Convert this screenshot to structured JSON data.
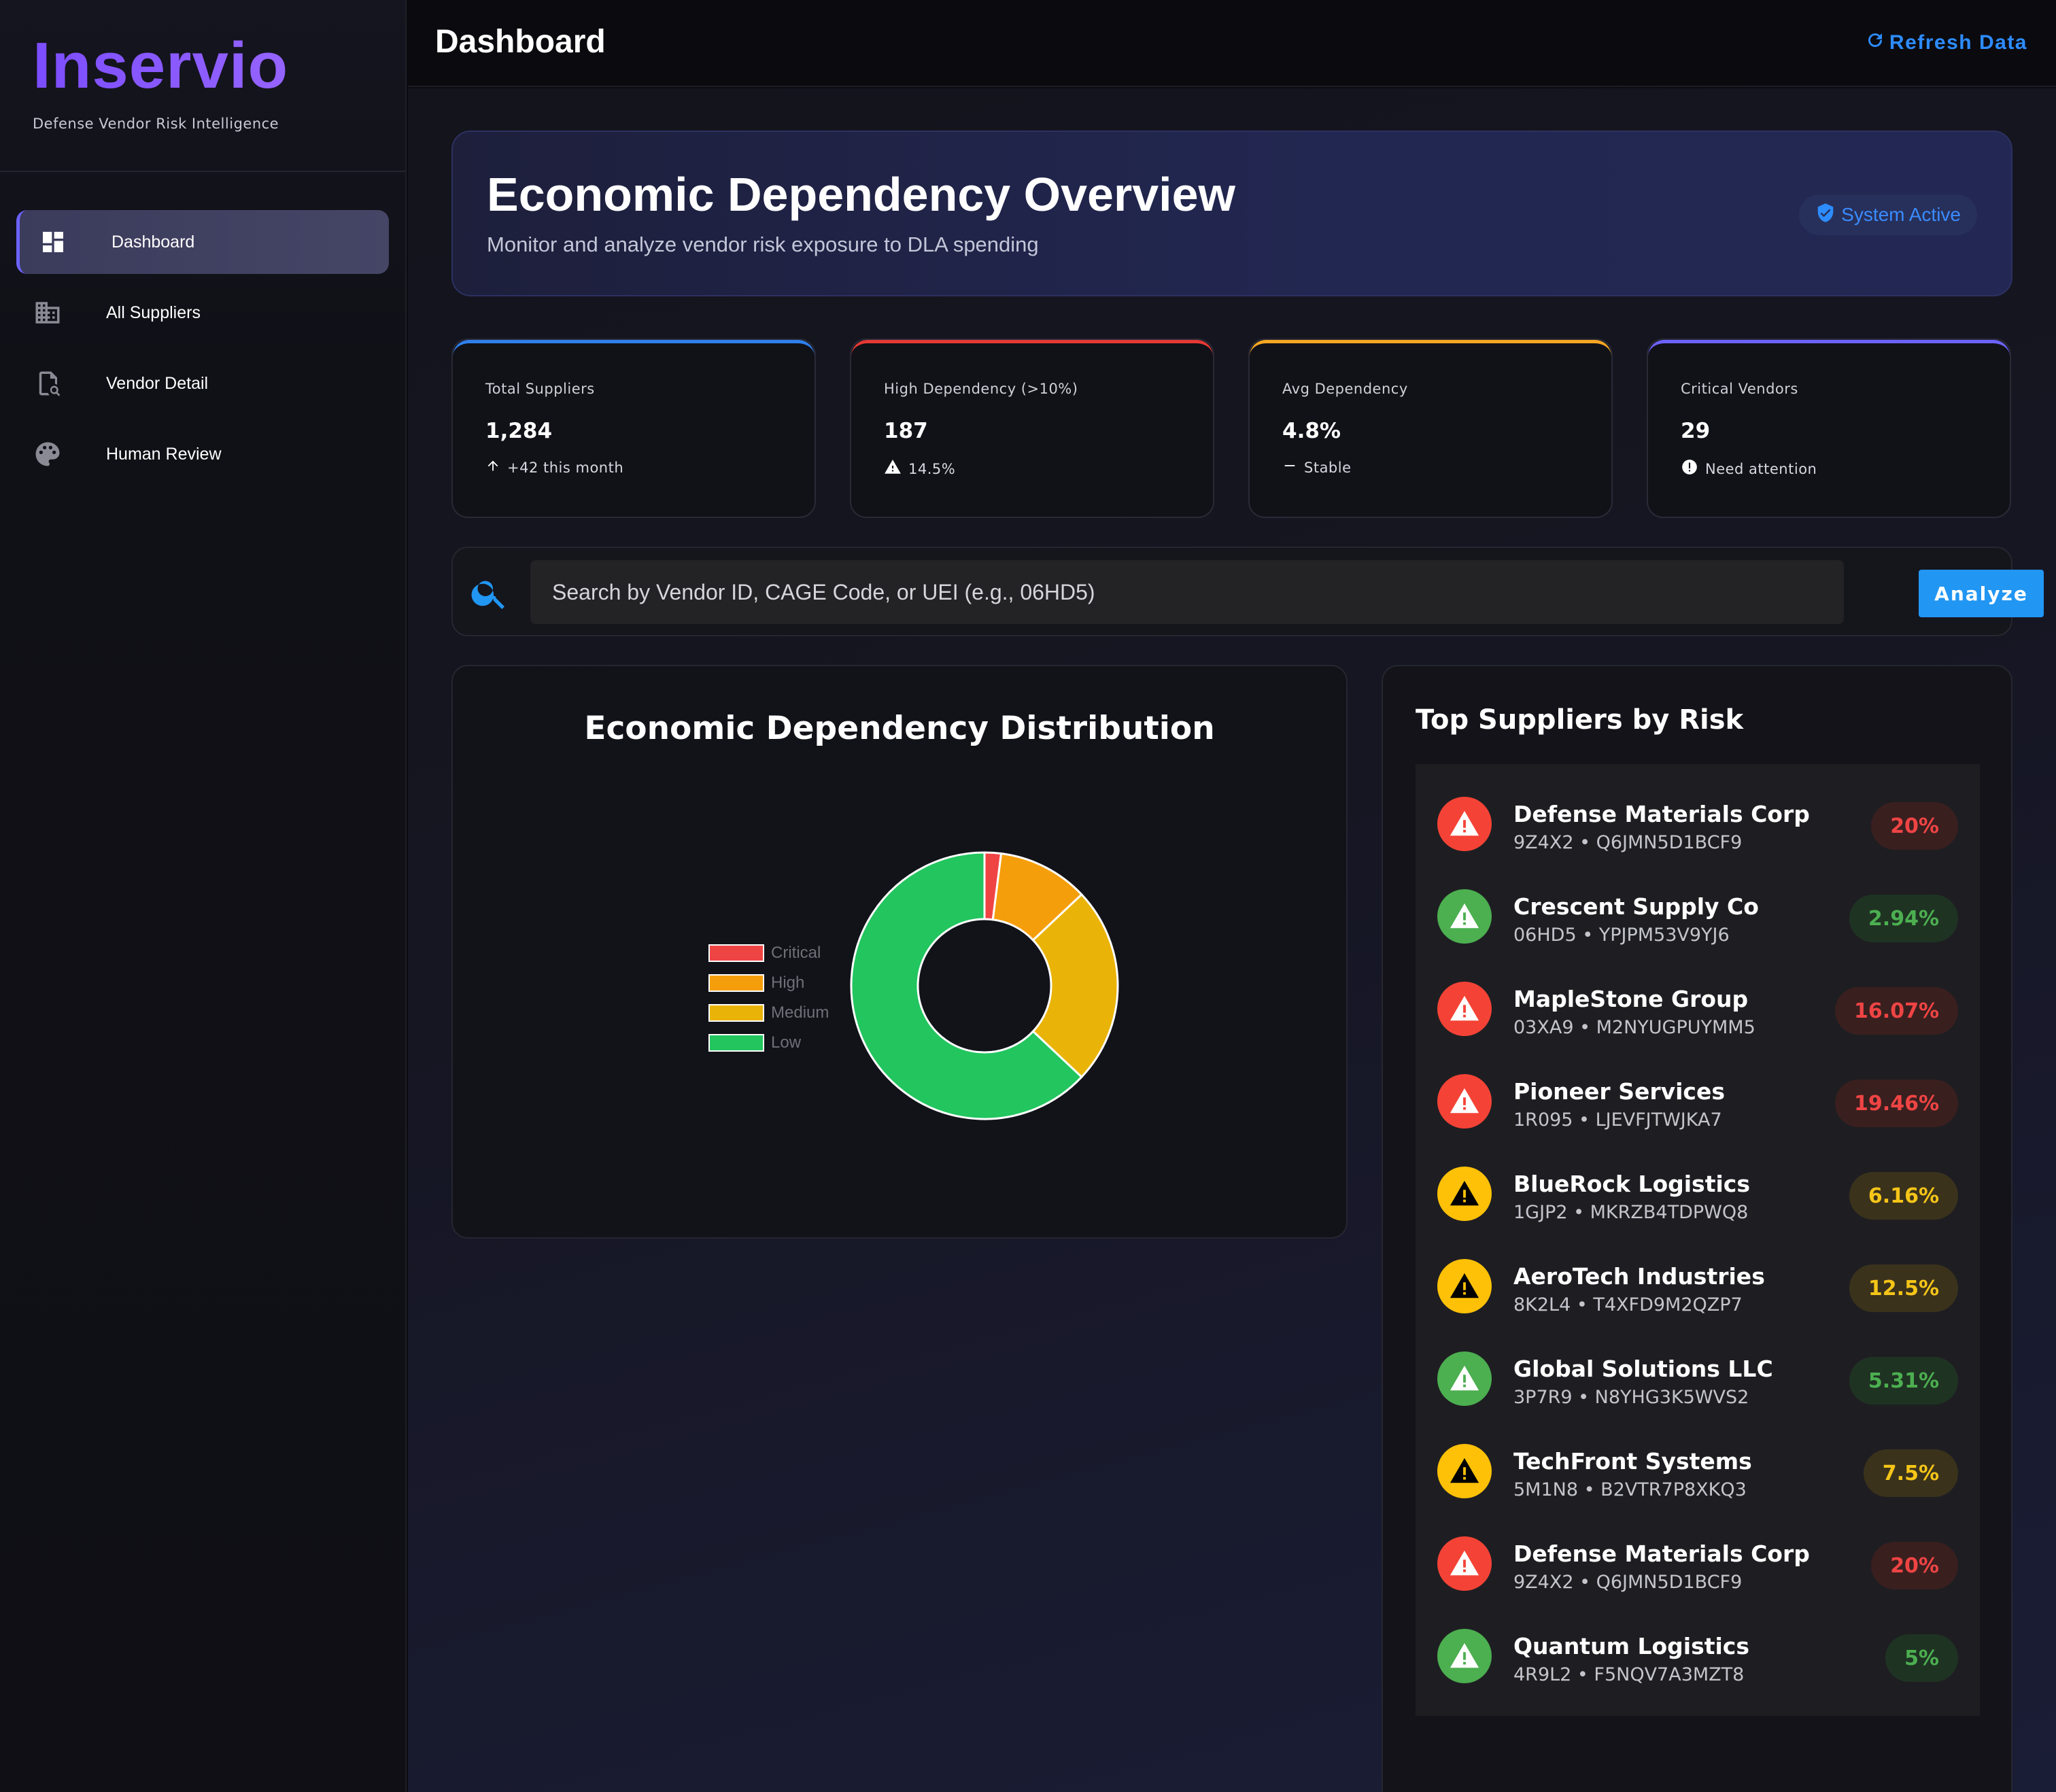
{
  "brand": {
    "name": "Inservio",
    "tagline": "Defense Vendor Risk Intelligence"
  },
  "nav": [
    {
      "label": "Dashboard",
      "icon": "dashboard-icon",
      "active": true
    },
    {
      "label": "All Suppliers",
      "icon": "building-icon",
      "active": false
    },
    {
      "label": "Vendor Detail",
      "icon": "document-search-icon",
      "active": false
    },
    {
      "label": "Human Review",
      "icon": "palette-icon",
      "active": false
    }
  ],
  "topbar": {
    "title": "Dashboard",
    "refresh_label": "Refresh Data"
  },
  "hero": {
    "title": "Economic Dependency Overview",
    "subtitle": "Monitor and analyze vendor risk exposure to DLA spending",
    "badge": "System Active"
  },
  "stats": [
    {
      "label": "Total Suppliers",
      "value": "1,284",
      "foot": "+42 this month",
      "foot_icon": "arrow-up-icon",
      "accent": "#2f80ed"
    },
    {
      "label": "High Dependency (>10%)",
      "value": "187",
      "foot": "14.5%",
      "foot_icon": "warning-icon",
      "accent": "#e53935"
    },
    {
      "label": "Avg Dependency",
      "value": "4.8%",
      "foot": "Stable",
      "foot_icon": "dash-icon",
      "accent": "#f5a623"
    },
    {
      "label": "Critical Vendors",
      "value": "29",
      "foot": "Need attention",
      "foot_icon": "alert-circle-icon",
      "accent": "#6c63ff"
    }
  ],
  "search": {
    "placeholder": "Search by Vendor ID, CAGE Code, or UEI (e.g., 06HD5)",
    "button_label": "Analyze"
  },
  "chart": {
    "title": "Economic Dependency Distribution"
  },
  "chart_data": {
    "type": "pie",
    "title": "Economic Dependency Distribution",
    "categories": [
      "Critical",
      "High",
      "Medium",
      "Low"
    ],
    "values": [
      2,
      11,
      24,
      63
    ],
    "colors": [
      "#ef4444",
      "#f59e0b",
      "#eab308",
      "#22c55e"
    ],
    "legend": "left"
  },
  "risk_list": {
    "title": "Top Suppliers by Risk",
    "items": [
      {
        "name": "Defense Materials Corp",
        "ids": "9Z4X2 • Q6JMN5D1BCF9",
        "value": "20%",
        "level": "red"
      },
      {
        "name": "Crescent Supply Co",
        "ids": "06HD5 • YPJPM53V9YJ6",
        "value": "2.94%",
        "level": "green"
      },
      {
        "name": "MapleStone Group",
        "ids": "03XA9 • M2NYUGPUYMM5",
        "value": "16.07%",
        "level": "red"
      },
      {
        "name": "Pioneer Services",
        "ids": "1R095 • LJEVFJTWJKA7",
        "value": "19.46%",
        "level": "red"
      },
      {
        "name": "BlueRock Logistics",
        "ids": "1GJP2 • MKRZB4TDPWQ8",
        "value": "6.16%",
        "level": "yellow"
      },
      {
        "name": "AeroTech Industries",
        "ids": "8K2L4 • T4XFD9M2QZP7",
        "value": "12.5%",
        "level": "yellow"
      },
      {
        "name": "Global Solutions LLC",
        "ids": "3P7R9 • N8YHG3K5WVS2",
        "value": "5.31%",
        "level": "green"
      },
      {
        "name": "TechFront Systems",
        "ids": "5M1N8 • B2VTR7P8XKQ3",
        "value": "7.5%",
        "level": "yellow"
      },
      {
        "name": "Defense Materials Corp",
        "ids": "9Z4X2 • Q6JMN5D1BCF9",
        "value": "20%",
        "level": "red"
      },
      {
        "name": "Quantum Logistics",
        "ids": "4R9L2 • F5NQV7A3MZT8",
        "value": "5%",
        "level": "green"
      }
    ]
  },
  "colors": {
    "brand": "#8b5cf6",
    "accent_blue": "#2196f3",
    "red": "#f44336",
    "green": "#4caf50",
    "yellow": "#ffc107"
  }
}
